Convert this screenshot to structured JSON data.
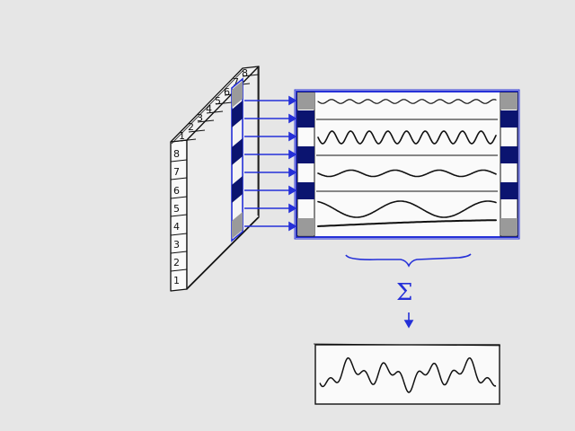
{
  "diagram": {
    "front_labels": [
      "8",
      "7",
      "6",
      "5",
      "4",
      "3",
      "2",
      "1"
    ],
    "top_labels": [
      "1",
      "2",
      "3",
      "4",
      "5",
      "6",
      "7",
      "8"
    ],
    "sum_symbol": "Σ",
    "colors": {
      "background": "#e6e6e6",
      "ink": "#111111",
      "sketch_blue": "#2530d8",
      "dark_cell": "#0b1470",
      "grey_cell": "#9a9a9a"
    }
  }
}
